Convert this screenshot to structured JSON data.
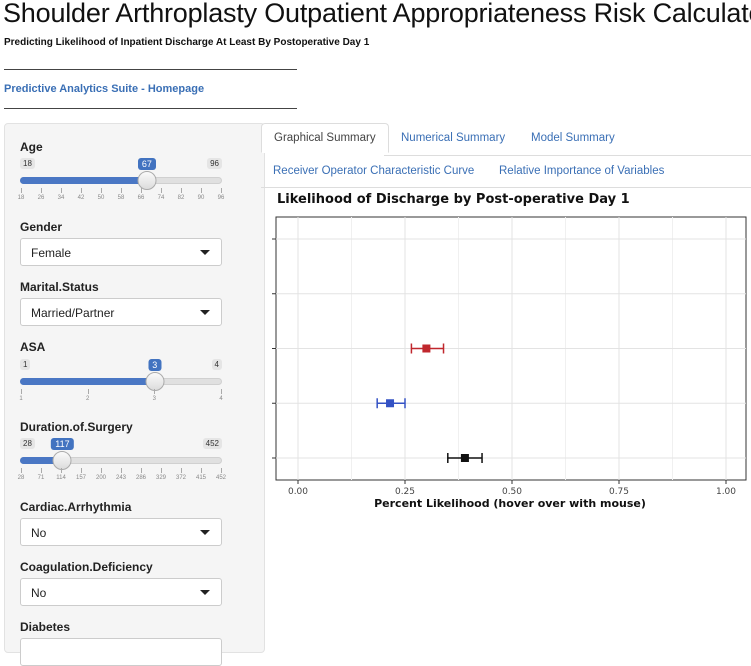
{
  "header": {
    "title": "Shoulder Arthroplasty Outpatient Appropriateness Risk Calculator",
    "subtitle": "Predicting Likelihood of Inpatient Discharge At Least By Postoperative Day 1",
    "home_link": "Predictive Analytics Suite - Homepage"
  },
  "sidebar": {
    "age": {
      "label": "Age",
      "min": "18",
      "max": "96",
      "value": "67",
      "fraction": 0.628,
      "ticks": [
        "18",
        "26",
        "34",
        "42",
        "50",
        "58",
        "66",
        "74",
        "82",
        "90",
        "96"
      ]
    },
    "gender": {
      "label": "Gender",
      "value": "Female"
    },
    "marital": {
      "label": "Marital.Status",
      "value": "Married/Partner"
    },
    "asa": {
      "label": "ASA",
      "min": "1",
      "max": "4",
      "value": "3",
      "fraction": 0.667,
      "ticks": [
        "1",
        "2",
        "3",
        "4"
      ]
    },
    "duration": {
      "label": "Duration.of.Surgery",
      "min": "28",
      "max": "452",
      "value": "117",
      "fraction": 0.21,
      "ticks": [
        "28",
        "71",
        "114",
        "157",
        "200",
        "243",
        "286",
        "329",
        "372",
        "415",
        "452"
      ]
    },
    "arrhythmia": {
      "label": "Cardiac.Arrhythmia",
      "value": "No"
    },
    "coagulation": {
      "label": "Coagulation.Deficiency",
      "value": "No"
    },
    "diabetes": {
      "label": "Diabetes"
    }
  },
  "tabs": [
    {
      "label": "Graphical Summary",
      "active": true
    },
    {
      "label": "Numerical Summary",
      "active": false
    },
    {
      "label": "Model Summary",
      "active": false
    },
    {
      "label": "Receiver Operator Characteristic Curve",
      "active": false
    },
    {
      "label": "Relative Importance of Variables",
      "active": false
    }
  ],
  "chart_data": {
    "type": "scatter",
    "title": "Likelihood of Discharge by Post-operative Day 1",
    "xlabel": "Percent Likelihood (hover over with mouse)",
    "ylabel": "",
    "xlim": [
      0,
      1.05
    ],
    "x_ticks": [
      "0.00",
      "0.25",
      "0.50",
      "0.75",
      "1.00"
    ],
    "y_levels": 5,
    "grid": true,
    "points": [
      {
        "level": 1,
        "value": 0.39,
        "lower": 0.35,
        "upper": 0.43,
        "color": "#111111"
      },
      {
        "level": 2,
        "value": 0.215,
        "lower": 0.185,
        "upper": 0.25,
        "color": "#3452c4"
      },
      {
        "level": 3,
        "value": 0.3,
        "lower": 0.265,
        "upper": 0.34,
        "color": "#c0272d"
      }
    ]
  }
}
